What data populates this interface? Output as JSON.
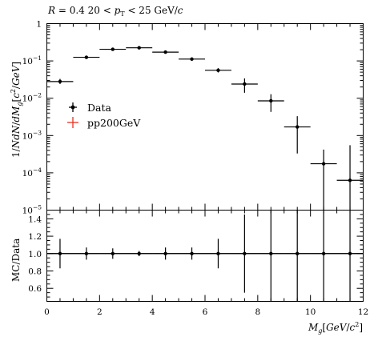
{
  "chart_data": [
    {
      "type": "scatter",
      "title": "R = 0.4 20 < p_T < 25 GeV/c",
      "title_parts": {
        "r_sym": "R",
        "r_rest": " = 0.4 20 < ",
        "pt_sym": "p",
        "pt_sub": "T",
        "pt_rest": " < 25 GeV/",
        "c_sym": "c"
      },
      "ylabel": "1/NdN/dM_g[c^2/GeV]",
      "ylabel_parts": {
        "a": "1/",
        "b": "NdN",
        "c": "/",
        "d": "dM",
        "e": "g",
        "f": "[",
        "g": "c",
        "h": "2",
        "i": "/",
        "j": "GeV",
        "k": "]"
      },
      "yscale": "log",
      "ylim": [
        1e-05,
        1
      ],
      "xlim": [
        0,
        12
      ],
      "ytick_labels": [
        {
          "v": 1,
          "base": "1",
          "exp": ""
        },
        {
          "v": 0.1,
          "base": "10",
          "exp": "−1"
        },
        {
          "v": 0.01,
          "base": "10",
          "exp": "−2"
        },
        {
          "v": 0.001,
          "base": "10",
          "exp": "−3"
        },
        {
          "v": 0.0001,
          "base": "10",
          "exp": "−4"
        },
        {
          "v": 1e-05,
          "base": "10",
          "exp": "−5"
        }
      ],
      "legend": {
        "placement": "middle-left",
        "entries": [
          {
            "label": "Data",
            "color": "#000000"
          },
          {
            "label": "pp200GeV",
            "color": "#e8321e"
          }
        ]
      },
      "series": [
        {
          "name": "Data",
          "color": "#000000",
          "points": [
            {
              "x": 0.5,
              "xerr": 0.5,
              "y": 0.028,
              "ylo": 0.024,
              "yhi": 0.033
            },
            {
              "x": 1.5,
              "xerr": 0.5,
              "y": 0.125,
              "ylo": 0.117,
              "yhi": 0.134
            },
            {
              "x": 2.5,
              "xerr": 0.5,
              "y": 0.205,
              "ylo": 0.193,
              "yhi": 0.218
            },
            {
              "x": 3.5,
              "xerr": 0.5,
              "y": 0.225,
              "ylo": 0.213,
              "yhi": 0.238
            },
            {
              "x": 4.5,
              "xerr": 0.5,
              "y": 0.172,
              "ylo": 0.161,
              "yhi": 0.184
            },
            {
              "x": 5.5,
              "xerr": 0.5,
              "y": 0.112,
              "ylo": 0.104,
              "yhi": 0.121
            },
            {
              "x": 6.5,
              "xerr": 0.5,
              "y": 0.056,
              "ylo": 0.049,
              "yhi": 0.064
            },
            {
              "x": 7.5,
              "xerr": 0.5,
              "y": 0.024,
              "ylo": 0.014,
              "yhi": 0.034
            },
            {
              "x": 8.5,
              "xerr": 0.5,
              "y": 0.0085,
              "ylo": 0.0043,
              "yhi": 0.0128
            },
            {
              "x": 9.5,
              "xerr": 0.5,
              "y": 0.0017,
              "ylo": 0.00033,
              "yhi": 0.0033
            },
            {
              "x": 10.5,
              "xerr": 0.5,
              "y": 0.000175,
              "ylo": 1e-05,
              "yhi": 0.00042
            },
            {
              "x": 11.5,
              "xerr": 0.5,
              "y": 6.3e-05,
              "ylo": 1e-05,
              "yhi": 0.00055
            }
          ]
        }
      ]
    },
    {
      "type": "scatter",
      "ylabel": "MC/Data",
      "xlabel": "M_g[GeV/c^2]",
      "xlabel_parts": {
        "a": "M",
        "b": "g",
        "c": "[",
        "d": "GeV",
        "e": "/",
        "f": "c",
        "g": "2",
        "h": "]"
      },
      "xlim": [
        0,
        12
      ],
      "ylim": [
        0.45,
        1.5
      ],
      "xticks": [
        0,
        2,
        4,
        6,
        8,
        10,
        12
      ],
      "yticks": [
        0.6,
        0.8,
        1.0,
        1.2,
        1.4
      ],
      "ytick_labels": [
        "0.6",
        "0.8",
        "1.0",
        "1.2",
        "1.4"
      ],
      "series": [
        {
          "name": "Data",
          "color": "#000000",
          "points": [
            {
              "x": 0.5,
              "xerr": 0.5,
              "y": 1.0,
              "ylo": 0.83,
              "yhi": 1.17
            },
            {
              "x": 1.5,
              "xerr": 0.5,
              "y": 1.0,
              "ylo": 0.93,
              "yhi": 1.07
            },
            {
              "x": 2.5,
              "xerr": 0.5,
              "y": 1.0,
              "ylo": 0.94,
              "yhi": 1.06
            },
            {
              "x": 3.5,
              "xerr": 0.5,
              "y": 1.0,
              "ylo": 0.97,
              "yhi": 1.03
            },
            {
              "x": 4.5,
              "xerr": 0.5,
              "y": 1.0,
              "ylo": 0.93,
              "yhi": 1.07
            },
            {
              "x": 5.5,
              "xerr": 0.5,
              "y": 1.0,
              "ylo": 0.93,
              "yhi": 1.07
            },
            {
              "x": 6.5,
              "xerr": 0.5,
              "y": 1.0,
              "ylo": 0.83,
              "yhi": 1.17
            },
            {
              "x": 7.5,
              "xerr": 0.5,
              "y": 1.0,
              "ylo": 0.55,
              "yhi": 1.45
            },
            {
              "x": 8.5,
              "xerr": 0.5,
              "y": 1.0,
              "ylo": 0.45,
              "yhi": 1.5
            },
            {
              "x": 9.5,
              "xerr": 0.5,
              "y": 1.0,
              "ylo": 0.45,
              "yhi": 1.5
            },
            {
              "x": 10.5,
              "xerr": 0.5,
              "y": 1.0,
              "ylo": 0.45,
              "yhi": 1.5
            },
            {
              "x": 11.5,
              "xerr": 0.5,
              "y": 1.0,
              "ylo": 0.45,
              "yhi": 1.5
            }
          ]
        }
      ]
    }
  ]
}
